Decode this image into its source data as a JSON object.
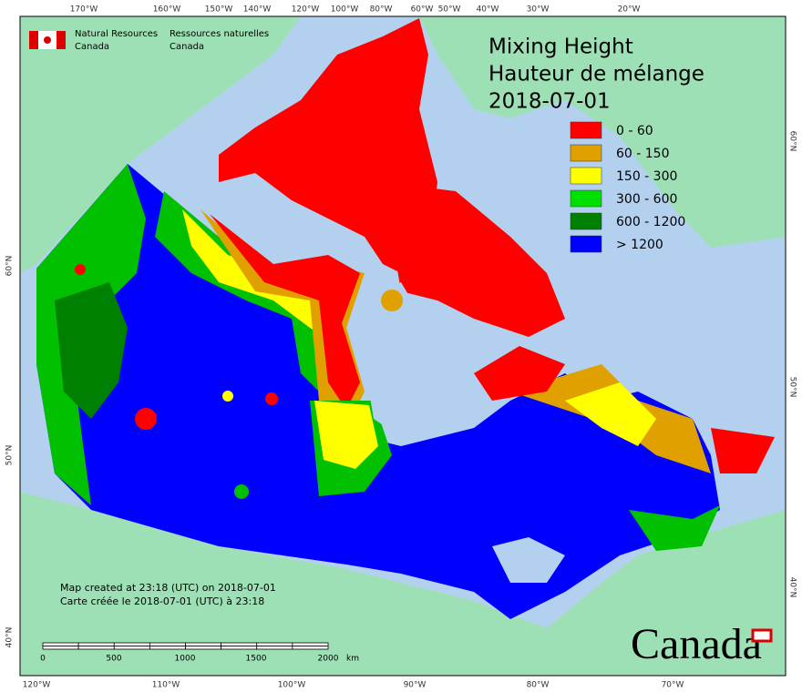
{
  "agency": {
    "en": [
      "Natural Resources",
      "Canada"
    ],
    "fr": [
      "Ressources naturelles",
      "Canada"
    ]
  },
  "title": [
    "Mixing Height",
    "Hauteur de mélange",
    "2018-07-01"
  ],
  "legend": [
    {
      "label": "0 - 60",
      "color": "#ff0000"
    },
    {
      "label": "60 - 150",
      "color": "#e0a000"
    },
    {
      "label": "150 - 300",
      "color": "#ffff00"
    },
    {
      "label": "300 - 600",
      "color": "#00e000"
    },
    {
      "label": "600 - 1200",
      "color": "#008000"
    },
    {
      "label": "> 1200",
      "color": "#0000ff"
    }
  ],
  "credits": [
    "Map created at 23:18 (UTC) on 2018-07-01",
    "Carte créée le 2018-07-01 (UTC) à 23:18"
  ],
  "scale": {
    "labels": [
      "0",
      "500",
      "1000",
      "1500",
      "2000"
    ],
    "unit": "km"
  },
  "graticule": {
    "top": [
      "170°W",
      "160°W",
      "150°W",
      "140°W",
      "120°W",
      "100°W",
      "80°W",
      "60°W",
      "50°W",
      "40°W",
      "30°W",
      "20°W"
    ],
    "bottom": [
      "120°W",
      "110°W",
      "100°W",
      "90°W",
      "80°W",
      "70°W"
    ],
    "left": [
      "60°N",
      "50°N",
      "40°N"
    ],
    "right": [
      "60°N",
      "50°N",
      "40°N"
    ]
  },
  "wordmark": "Canada"
}
